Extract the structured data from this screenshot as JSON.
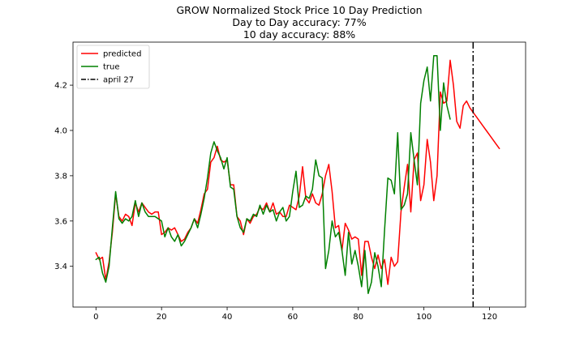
{
  "chart_data": {
    "type": "line",
    "title_lines": [
      "GROW Normalized Stock Price 10 Day Prediction",
      "Day to Day accuracy: 77%",
      "10 day accuracy: 88%"
    ],
    "xlabel": "",
    "ylabel": "",
    "xlim": [
      -7,
      131
    ],
    "ylim": [
      3.22,
      4.39
    ],
    "xticks": [
      0,
      20,
      40,
      60,
      80,
      100,
      120
    ],
    "yticks": [
      3.4,
      3.6,
      3.8,
      4.0,
      4.2
    ],
    "ytick_labels": [
      "3.4",
      "3.6",
      "3.8",
      "4.0",
      "4.2"
    ],
    "legend_position": "top-left",
    "vertical_line": {
      "x": 115,
      "label": "april 27",
      "color": "#000000",
      "style": "dash-dot"
    },
    "series": [
      {
        "name": "predicted",
        "color": "#ff0000",
        "x_start": 0,
        "values": [
          3.46,
          3.43,
          3.44,
          3.34,
          3.42,
          3.55,
          3.72,
          3.62,
          3.6,
          3.63,
          3.62,
          3.58,
          3.68,
          3.64,
          3.68,
          3.66,
          3.64,
          3.63,
          3.64,
          3.64,
          3.54,
          3.55,
          3.57,
          3.56,
          3.57,
          3.54,
          3.51,
          3.52,
          3.55,
          3.57,
          3.61,
          3.59,
          3.65,
          3.72,
          3.74,
          3.86,
          3.88,
          3.93,
          3.87,
          3.86,
          3.87,
          3.76,
          3.76,
          3.62,
          3.6,
          3.54,
          3.61,
          3.59,
          3.62,
          3.63,
          3.66,
          3.65,
          3.68,
          3.64,
          3.68,
          3.63,
          3.64,
          3.62,
          3.62,
          3.67,
          3.66,
          3.65,
          3.71,
          3.84,
          3.7,
          3.68,
          3.72,
          3.68,
          3.67,
          3.72,
          3.8,
          3.85,
          3.73,
          3.57,
          3.58,
          3.47,
          3.59,
          3.56,
          3.52,
          3.53,
          3.52,
          3.36,
          3.51,
          3.51,
          3.44,
          3.39,
          3.45,
          3.39,
          3.43,
          3.32,
          3.44,
          3.4,
          3.42,
          3.64,
          3.75,
          3.85,
          3.64,
          3.87,
          3.9,
          3.69,
          3.76,
          3.96,
          3.86,
          3.69,
          3.8,
          4.17,
          4.12,
          4.13,
          4.31,
          4.2,
          4.04,
          4.01,
          4.11,
          4.13,
          4.1,
          4.08,
          4.06,
          4.04,
          4.02,
          4.0,
          3.98,
          3.96,
          3.94,
          3.92
        ]
      },
      {
        "name": "true",
        "color": "#008000",
        "x_start": 0,
        "values": [
          3.43,
          3.44,
          3.37,
          3.33,
          3.4,
          3.57,
          3.73,
          3.61,
          3.59,
          3.61,
          3.6,
          3.62,
          3.69,
          3.62,
          3.68,
          3.64,
          3.62,
          3.62,
          3.62,
          3.61,
          3.6,
          3.53,
          3.57,
          3.53,
          3.51,
          3.54,
          3.49,
          3.51,
          3.54,
          3.57,
          3.61,
          3.57,
          3.63,
          3.7,
          3.79,
          3.9,
          3.95,
          3.91,
          3.88,
          3.83,
          3.88,
          3.75,
          3.74,
          3.62,
          3.57,
          3.55,
          3.61,
          3.6,
          3.63,
          3.62,
          3.67,
          3.63,
          3.67,
          3.64,
          3.65,
          3.6,
          3.64,
          3.66,
          3.6,
          3.62,
          3.73,
          3.82,
          3.66,
          3.67,
          3.71,
          3.7,
          3.74,
          3.87,
          3.8,
          3.79,
          3.39,
          3.47,
          3.6,
          3.53,
          3.55,
          3.47,
          3.36,
          3.55,
          3.41,
          3.47,
          3.4,
          3.31,
          3.47,
          3.28,
          3.33,
          3.46,
          3.4,
          3.31,
          3.56,
          3.79,
          3.78,
          3.72,
          3.99,
          3.65,
          3.67,
          3.72,
          3.99,
          3.87,
          3.76,
          4.12,
          4.22,
          4.28,
          4.13,
          4.33,
          4.33,
          4.0,
          4.21,
          4.11,
          4.05
        ]
      },
      {
        "name": "april 27",
        "color": "#000000"
      }
    ]
  }
}
